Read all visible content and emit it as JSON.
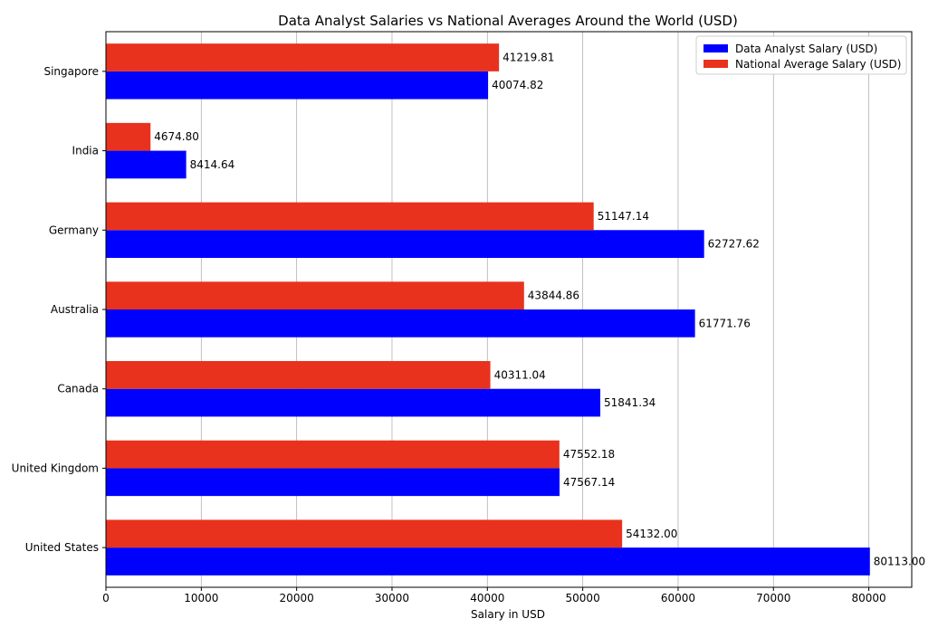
{
  "chart_data": {
    "type": "bar",
    "orientation": "horizontal",
    "title": "Data Analyst Salaries vs National Averages Around the World (USD)",
    "xlabel": "Salary in USD",
    "ylabel": "",
    "categories": [
      "United States",
      "United Kingdom",
      "Canada",
      "Australia",
      "Germany",
      "India",
      "Singapore"
    ],
    "series": [
      {
        "name": "Data Analyst Salary (USD)",
        "color": "#0000ff",
        "values": [
          80113.0,
          47567.14,
          51841.34,
          61771.76,
          62727.62,
          8414.64,
          40074.82
        ],
        "labels": [
          "80113.00",
          "47567.14",
          "51841.34",
          "61771.76",
          "62727.62",
          "8414.64",
          "40074.82"
        ]
      },
      {
        "name": "National Average Salary (USD)",
        "color": "#e8321e",
        "values": [
          54132.0,
          47552.18,
          40311.04,
          43844.86,
          51147.14,
          4674.8,
          41219.81
        ],
        "labels": [
          "54132.00",
          "47552.18",
          "40311.04",
          "43844.86",
          "51147.14",
          "4674.80",
          "41219.81"
        ]
      }
    ],
    "xlim": [
      0,
      84500
    ],
    "xticks": [
      0,
      10000,
      20000,
      30000,
      40000,
      50000,
      60000,
      70000,
      80000
    ],
    "xtick_labels": [
      "0",
      "10000",
      "20000",
      "30000",
      "40000",
      "50000",
      "60000",
      "70000",
      "80000"
    ],
    "grid": "x",
    "legend_position": "top-right"
  }
}
